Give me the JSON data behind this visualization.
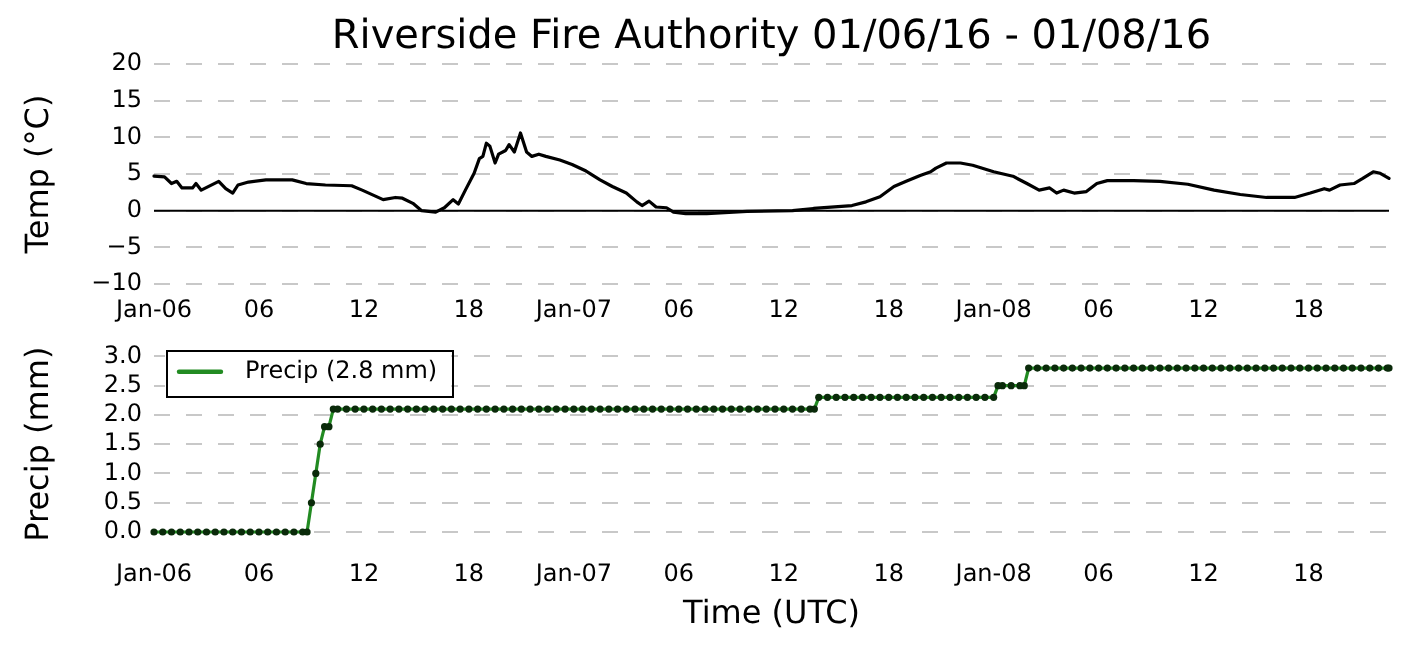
{
  "chart_data": [
    {
      "type": "line",
      "title": "Riverside Fire Authority 01/06/16 - 01/08/16",
      "ylabel": "Temp (°C)",
      "x": [
        "--01-06T00:00",
        "--01-06T00:36",
        "--01-06T01:00",
        "--01-06T01:18",
        "--01-06T01:36",
        "--01-06T02:12",
        "--01-06T02:24",
        "--01-06T02:42",
        "--01-06T03:42",
        "--01-06T04:06",
        "--01-06T04:30",
        "--01-06T04:48",
        "--01-06T05:24",
        "--01-06T06:24",
        "--01-06T07:54",
        "--01-06T08:42",
        "--01-06T09:48",
        "--01-06T11:18",
        "--01-06T11:54",
        "--01-06T13:06",
        "--01-06T13:48",
        "--01-06T14:12",
        "--01-06T14:48",
        "--01-06T15:18",
        "--01-06T16:06",
        "--01-06T16:36",
        "--01-06T17:06",
        "--01-06T17:24",
        "--01-06T17:48",
        "--01-06T18:18",
        "--01-06T18:36",
        "--01-06T18:48",
        "--01-06T19:00",
        "--01-06T19:12",
        "--01-06T19:30",
        "--01-06T19:42",
        "--01-06T20:06",
        "--01-06T20:18",
        "--01-06T20:36",
        "--01-06T20:57",
        "--01-06T21:18",
        "--01-06T21:36",
        "--01-06T22:00",
        "--01-06T22:24",
        "--01-06T23:12",
        "--01-06T23:54",
        "--01-07T00:42",
        "--01-07T01:30",
        "--01-07T02:12",
        "--01-07T03:00",
        "--01-07T03:36",
        "--01-07T03:54",
        "--01-07T04:18",
        "--01-07T04:42",
        "--01-07T05:18",
        "--01-07T05:42",
        "--01-07T06:24",
        "--01-07T07:36",
        "--01-07T09:54",
        "--01-07T12:30",
        "--01-07T13:42",
        "--01-07T15:54",
        "--01-07T16:42",
        "--01-07T17:30",
        "--01-07T18:18",
        "--01-07T19:00",
        "--01-07T19:48",
        "--01-07T20:24",
        "--01-07T20:42",
        "--01-07T21:18",
        "--01-07T22:06",
        "--01-07T22:48",
        "--01-08T00:00",
        "--01-08T01:06",
        "--01-08T01:54",
        "--01-08T02:36",
        "--01-08T03:12",
        "--01-08T03:36",
        "--01-08T04:00",
        "--01-08T04:36",
        "--01-08T05:18",
        "--01-08T05:54",
        "--01-08T06:30",
        "--01-08T08:00",
        "--01-08T09:30",
        "--01-08T11:06",
        "--01-08T12:36",
        "--01-08T14:06",
        "--01-08T15:36",
        "--01-08T17:12",
        "--01-08T18:06",
        "--01-08T18:54",
        "--01-08T19:12",
        "--01-08T19:48",
        "--01-08T20:36",
        "--01-08T21:06",
        "--01-08T21:42",
        "--01-08T22:06",
        "--01-08T22:36"
      ],
      "values": [
        4.7,
        4.6,
        3.7,
        4.0,
        3.1,
        3.1,
        3.7,
        2.8,
        4.0,
        3.0,
        2.4,
        3.5,
        3.9,
        4.2,
        4.2,
        3.7,
        3.5,
        3.4,
        2.8,
        1.5,
        1.8,
        1.7,
        1.0,
        0.0,
        -0.2,
        0.4,
        1.5,
        0.9,
        2.8,
        5.1,
        7.1,
        7.4,
        9.2,
        8.8,
        6.5,
        7.7,
        8.2,
        9.0,
        8.0,
        10.6,
        8.0,
        7.4,
        7.7,
        7.4,
        6.9,
        6.3,
        5.4,
        4.2,
        3.3,
        2.4,
        1.2,
        0.7,
        1.3,
        0.5,
        0.4,
        -0.2,
        -0.4,
        -0.4,
        -0.1,
        0.0,
        0.3,
        0.7,
        1.2,
        1.9,
        3.3,
        4.0,
        4.8,
        5.3,
        5.8,
        6.5,
        6.5,
        6.2,
        5.3,
        4.7,
        3.7,
        2.8,
        3.1,
        2.4,
        2.8,
        2.4,
        2.6,
        3.7,
        4.1,
        4.1,
        4.0,
        3.6,
        2.8,
        2.2,
        1.8,
        1.8,
        2.4,
        3.0,
        2.8,
        3.5,
        3.7,
        4.4,
        5.3,
        5.1,
        4.4
      ],
      "color": "#000000",
      "xlim": [
        "--01-06T00:00",
        "--01-08T22:36"
      ],
      "xticks": [
        {
          "value": "--01-06T00:00",
          "label": "Jan-06"
        },
        {
          "value": "--01-06T06:00",
          "label": "06"
        },
        {
          "value": "--01-06T12:00",
          "label": "12"
        },
        {
          "value": "--01-06T18:00",
          "label": "18"
        },
        {
          "value": "--01-07T00:00",
          "label": "Jan-07"
        },
        {
          "value": "--01-07T06:00",
          "label": "06"
        },
        {
          "value": "--01-07T12:00",
          "label": "12"
        },
        {
          "value": "--01-07T18:00",
          "label": "18"
        },
        {
          "value": "--01-08T00:00",
          "label": "Jan-08"
        },
        {
          "value": "--01-08T06:00",
          "label": "06"
        },
        {
          "value": "--01-08T12:00",
          "label": "12"
        },
        {
          "value": "--01-08T18:00",
          "label": "18"
        }
      ],
      "ylim": [
        -10,
        20
      ],
      "yticks": [
        {
          "value": -10,
          "label": "−10"
        },
        {
          "value": -5,
          "label": "−5"
        },
        0,
        5,
        10,
        15,
        20
      ],
      "grid": "y",
      "ref_lines": [
        {
          "axis": "y",
          "value": 0,
          "color": "#000000"
        }
      ]
    },
    {
      "type": "line",
      "ylabel": "Precip (mm)",
      "xlabel": "Time (UTC)",
      "series": [
        {
          "name": "Precip (2.8 mm)",
          "color": "#228b22",
          "x": [
            "--01-06T00:00",
            "--01-06T00:30",
            "--01-06T01:00",
            "--01-06T01:30",
            "--01-06T02:00",
            "--01-06T02:30",
            "--01-06T03:00",
            "--01-06T03:30",
            "--01-06T04:00",
            "--01-06T04:30",
            "--01-06T05:00",
            "--01-06T05:30",
            "--01-06T06:00",
            "--01-06T06:30",
            "--01-06T07:00",
            "--01-06T07:30",
            "--01-06T08:00",
            "--01-06T08:30",
            "--01-06T08:45",
            "--01-06T09:00",
            "--01-06T09:15",
            "--01-06T09:30",
            "--01-06T09:45",
            "--01-06T10:00",
            "--01-06T10:15",
            "--01-06T10:30",
            "--01-06T11:00",
            "--01-06T11:30",
            "--01-06T12:00",
            "--01-06T12:30",
            "--01-06T13:00",
            "--01-06T13:30",
            "--01-06T14:00",
            "--01-06T14:30",
            "--01-06T15:00",
            "--01-06T15:30",
            "--01-06T16:00",
            "--01-06T16:30",
            "--01-06T17:00",
            "--01-06T17:30",
            "--01-06T18:00",
            "--01-06T18:30",
            "--01-06T19:00",
            "--01-06T19:30",
            "--01-06T20:00",
            "--01-06T20:30",
            "--01-06T21:00",
            "--01-06T21:30",
            "--01-06T22:00",
            "--01-06T22:30",
            "--01-06T23:00",
            "--01-06T23:30",
            "--01-07T00:00",
            "--01-07T00:30",
            "--01-07T01:00",
            "--01-07T01:30",
            "--01-07T02:00",
            "--01-07T02:30",
            "--01-07T03:00",
            "--01-07T03:30",
            "--01-07T04:00",
            "--01-07T04:30",
            "--01-07T05:00",
            "--01-07T05:30",
            "--01-07T06:00",
            "--01-07T06:30",
            "--01-07T07:00",
            "--01-07T07:30",
            "--01-07T08:00",
            "--01-07T08:30",
            "--01-07T09:00",
            "--01-07T09:30",
            "--01-07T10:00",
            "--01-07T10:30",
            "--01-07T11:00",
            "--01-07T11:30",
            "--01-07T12:00",
            "--01-07T12:30",
            "--01-07T13:00",
            "--01-07T13:30",
            "--01-07T13:45",
            "--01-07T14:00",
            "--01-07T14:30",
            "--01-07T15:00",
            "--01-07T15:30",
            "--01-07T16:00",
            "--01-07T16:30",
            "--01-07T17:00",
            "--01-07T17:30",
            "--01-07T18:00",
            "--01-07T18:30",
            "--01-07T19:00",
            "--01-07T19:30",
            "--01-07T20:00",
            "--01-07T20:30",
            "--01-07T21:00",
            "--01-07T21:30",
            "--01-07T22:00",
            "--01-07T22:30",
            "--01-07T23:00",
            "--01-07T23:30",
            "--01-08T00:00",
            "--01-08T00:15",
            "--01-08T00:30",
            "--01-08T01:00",
            "--01-08T01:30",
            "--01-08T01:45",
            "--01-08T02:00",
            "--01-08T02:30",
            "--01-08T03:00",
            "--01-08T03:30",
            "--01-08T04:00",
            "--01-08T04:30",
            "--01-08T05:00",
            "--01-08T05:30",
            "--01-08T06:00",
            "--01-08T06:30",
            "--01-08T07:00",
            "--01-08T07:30",
            "--01-08T08:00",
            "--01-08T08:30",
            "--01-08T09:00",
            "--01-08T09:30",
            "--01-08T10:00",
            "--01-08T10:30",
            "--01-08T11:00",
            "--01-08T11:30",
            "--01-08T12:00",
            "--01-08T12:30",
            "--01-08T13:00",
            "--01-08T13:30",
            "--01-08T14:00",
            "--01-08T14:30",
            "--01-08T15:00",
            "--01-08T15:30",
            "--01-08T16:00",
            "--01-08T16:30",
            "--01-08T17:00",
            "--01-08T17:30",
            "--01-08T18:00",
            "--01-08T18:30",
            "--01-08T19:00",
            "--01-08T19:30",
            "--01-08T20:00",
            "--01-08T20:30",
            "--01-08T21:00",
            "--01-08T21:30",
            "--01-08T22:00",
            "--01-08T22:30",
            "--01-08T22:36"
          ],
          "values": [
            0,
            0,
            0,
            0,
            0,
            0,
            0,
            0,
            0,
            0,
            0,
            0,
            0,
            0,
            0,
            0,
            0,
            0,
            0,
            0.5,
            1.0,
            1.5,
            1.8,
            1.8,
            2.1,
            2.1,
            2.1,
            2.1,
            2.1,
            2.1,
            2.1,
            2.1,
            2.1,
            2.1,
            2.1,
            2.1,
            2.1,
            2.1,
            2.1,
            2.1,
            2.1,
            2.1,
            2.1,
            2.1,
            2.1,
            2.1,
            2.1,
            2.1,
            2.1,
            2.1,
            2.1,
            2.1,
            2.1,
            2.1,
            2.1,
            2.1,
            2.1,
            2.1,
            2.1,
            2.1,
            2.1,
            2.1,
            2.1,
            2.1,
            2.1,
            2.1,
            2.1,
            2.1,
            2.1,
            2.1,
            2.1,
            2.1,
            2.1,
            2.1,
            2.1,
            2.1,
            2.1,
            2.1,
            2.1,
            2.1,
            2.1,
            2.3,
            2.3,
            2.3,
            2.3,
            2.3,
            2.3,
            2.3,
            2.3,
            2.3,
            2.3,
            2.3,
            2.3,
            2.3,
            2.3,
            2.3,
            2.3,
            2.3,
            2.3,
            2.3,
            2.3,
            2.3,
            2.5,
            2.5,
            2.5,
            2.5,
            2.5,
            2.8,
            2.8,
            2.8,
            2.8,
            2.8,
            2.8,
            2.8,
            2.8,
            2.8,
            2.8,
            2.8,
            2.8,
            2.8,
            2.8,
            2.8,
            2.8,
            2.8,
            2.8,
            2.8,
            2.8,
            2.8,
            2.8,
            2.8,
            2.8,
            2.8,
            2.8,
            2.8,
            2.8,
            2.8,
            2.8,
            2.8,
            2.8,
            2.8,
            2.8,
            2.8,
            2.8,
            2.8,
            2.8,
            2.8,
            2.8,
            2.8,
            2.8,
            2.8
          ]
        }
      ],
      "xlim": [
        "--01-06T00:00",
        "--01-08T22:36"
      ],
      "xticks": [
        {
          "value": "--01-06T00:00",
          "label": "Jan-06"
        },
        {
          "value": "--01-06T06:00",
          "label": "06"
        },
        {
          "value": "--01-06T12:00",
          "label": "12"
        },
        {
          "value": "--01-06T18:00",
          "label": "18"
        },
        {
          "value": "--01-07T00:00",
          "label": "Jan-07"
        },
        {
          "value": "--01-07T06:00",
          "label": "06"
        },
        {
          "value": "--01-07T12:00",
          "label": "12"
        },
        {
          "value": "--01-07T18:00",
          "label": "18"
        },
        {
          "value": "--01-08T00:00",
          "label": "Jan-08"
        },
        {
          "value": "--01-08T06:00",
          "label": "06"
        },
        {
          "value": "--01-08T12:00",
          "label": "12"
        },
        {
          "value": "--01-08T18:00",
          "label": "18"
        }
      ],
      "ylim": [
        0,
        3
      ],
      "yticks": [
        {
          "value": 0,
          "label": "0.0"
        },
        0.5,
        {
          "value": 1,
          "label": "1.0"
        },
        1.5,
        {
          "value": 2,
          "label": "2.0"
        },
        2.5,
        {
          "value": 3,
          "label": "3.0"
        }
      ],
      "grid": "y",
      "legend": "top left",
      "marker": "circle"
    }
  ]
}
